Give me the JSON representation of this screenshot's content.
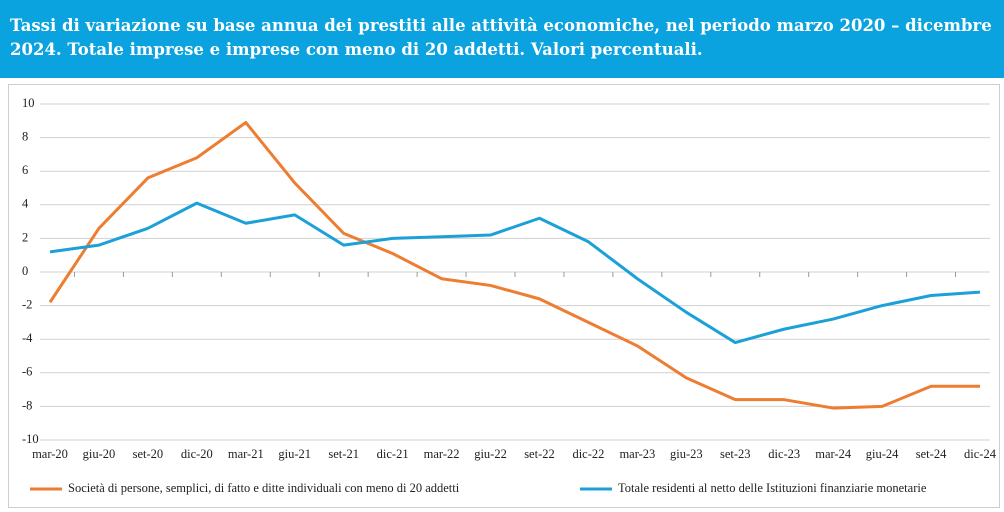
{
  "chart_data": {
    "type": "line",
    "title": "Tassi di variazione su base annua dei prestiti alle attività economiche, nel periodo marzo 2020 – dicembre 2024. Totale imprese e imprese con meno di 20 addetti. Valori percentuali.",
    "categories": [
      "mar-20",
      "giu-20",
      "set-20",
      "dic-20",
      "mar-21",
      "giu-21",
      "set-21",
      "dic-21",
      "mar-22",
      "giu-22",
      "set-22",
      "dic-22",
      "mar-23",
      "giu-23",
      "set-23",
      "dic-23",
      "mar-24",
      "giu-24",
      "set-24",
      "dic-24"
    ],
    "series": [
      {
        "name": "Società di persone, semplici, di fatto e ditte individuali con meno di 20 addetti",
        "color": "#ed7d31",
        "values": [
          -1.8,
          2.6,
          5.6,
          6.8,
          8.9,
          5.3,
          2.3,
          1.1,
          -0.4,
          -0.8,
          -1.6,
          -3.0,
          -4.4,
          -6.3,
          -7.6,
          -7.6,
          -8.1,
          -8.0,
          -6.8,
          -6.8
        ]
      },
      {
        "name": "Totale residenti al netto delle Istituzioni finanziarie monetarie",
        "color": "#1ba1d8",
        "values": [
          1.2,
          1.6,
          2.6,
          4.1,
          2.9,
          3.4,
          1.6,
          2.0,
          2.1,
          2.2,
          3.2,
          1.8,
          -0.4,
          -2.4,
          -4.2,
          -3.4,
          -2.8,
          -2.0,
          -1.4,
          -1.2
        ]
      }
    ],
    "ylim": [
      -10,
      10
    ],
    "yticks": [
      -10,
      -8,
      -6,
      -4,
      -2,
      0,
      2,
      4,
      6,
      8,
      10
    ],
    "grid": true,
    "legend": "bottom"
  }
}
